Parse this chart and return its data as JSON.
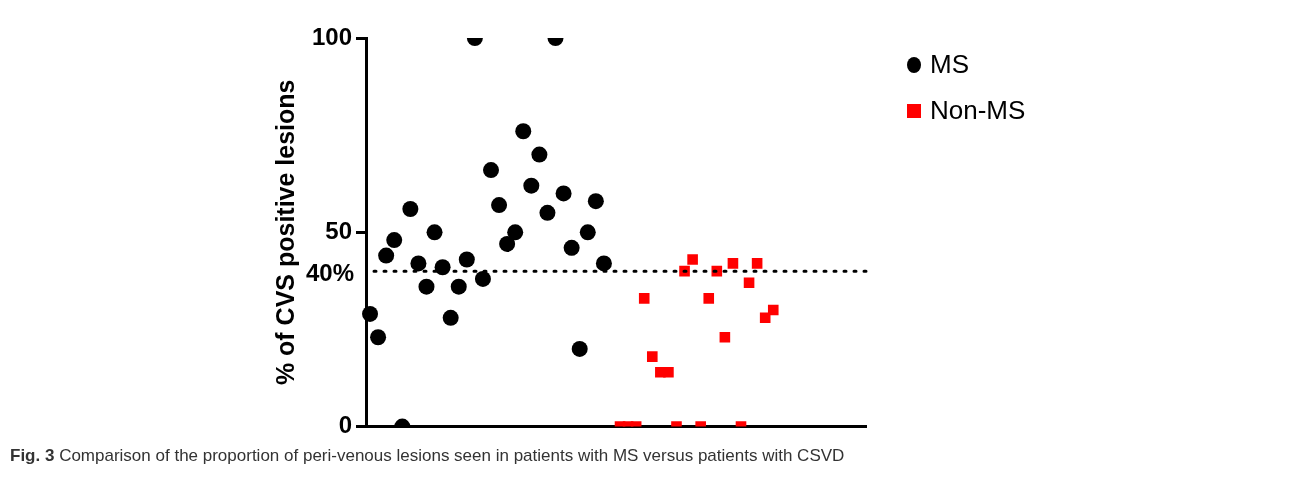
{
  "chart_data": {
    "type": "scatter",
    "ylabel": "% of CVS positive lesions",
    "categories": [
      null,
      null,
      null,
      null,
      null,
      null,
      null,
      null,
      null,
      null,
      null,
      null,
      null,
      null,
      null,
      null,
      null,
      null,
      null,
      null,
      null,
      null,
      null,
      null,
      null,
      null,
      null,
      null,
      null,
      null,
      null,
      null,
      null,
      null,
      null,
      null,
      null,
      null,
      null,
      null,
      null,
      null,
      null,
      null,
      null,
      null,
      null,
      null,
      null,
      null,
      null,
      null,
      null,
      null,
      null,
      null,
      null,
      null,
      null,
      null,
      null,
      null
    ],
    "series": [
      {
        "name": "MS",
        "color": "#000000",
        "marker": "circle",
        "values": [
          29,
          23,
          44,
          48,
          0,
          56,
          42,
          36,
          50,
          41,
          28,
          36,
          43,
          100,
          38,
          66,
          57,
          47,
          50,
          76,
          62,
          70,
          55,
          100,
          60,
          46,
          20,
          50,
          58,
          42,
          null,
          null,
          null,
          null,
          null,
          null,
          null,
          null,
          null,
          null,
          null,
          null,
          null,
          null,
          null,
          null,
          null,
          null,
          null,
          null,
          null,
          null,
          null,
          null,
          null,
          null,
          null,
          null,
          null,
          null,
          null,
          null
        ]
      },
      {
        "name": "Non-MS",
        "color": "#ff0000",
        "marker": "square",
        "values": [
          null,
          null,
          null,
          null,
          null,
          null,
          null,
          null,
          null,
          null,
          null,
          null,
          null,
          null,
          null,
          null,
          null,
          null,
          null,
          null,
          null,
          null,
          null,
          null,
          null,
          null,
          null,
          null,
          null,
          null,
          null,
          0,
          0,
          0,
          33,
          18,
          14,
          14,
          0,
          40,
          43,
          0,
          33,
          40,
          23,
          42,
          0,
          37,
          42,
          28,
          30,
          null,
          null,
          null,
          null,
          null,
          null,
          null,
          null,
          null,
          null,
          null
        ]
      }
    ],
    "ylim": [
      0,
      100
    ],
    "yticks": [
      0,
      50,
      100
    ],
    "tick_labels": "y",
    "grid": false,
    "legend": "top right",
    "ref_lines": [
      {
        "axis": "y",
        "value": 40,
        "label": "40%",
        "line_style": "dotted",
        "color": "#000000"
      }
    ],
    "annotations": [
      "Fig. 3 Comparison of the proportion of peri-venous lesions seen in patients with MS versus patients with CSVD"
    ]
  }
}
